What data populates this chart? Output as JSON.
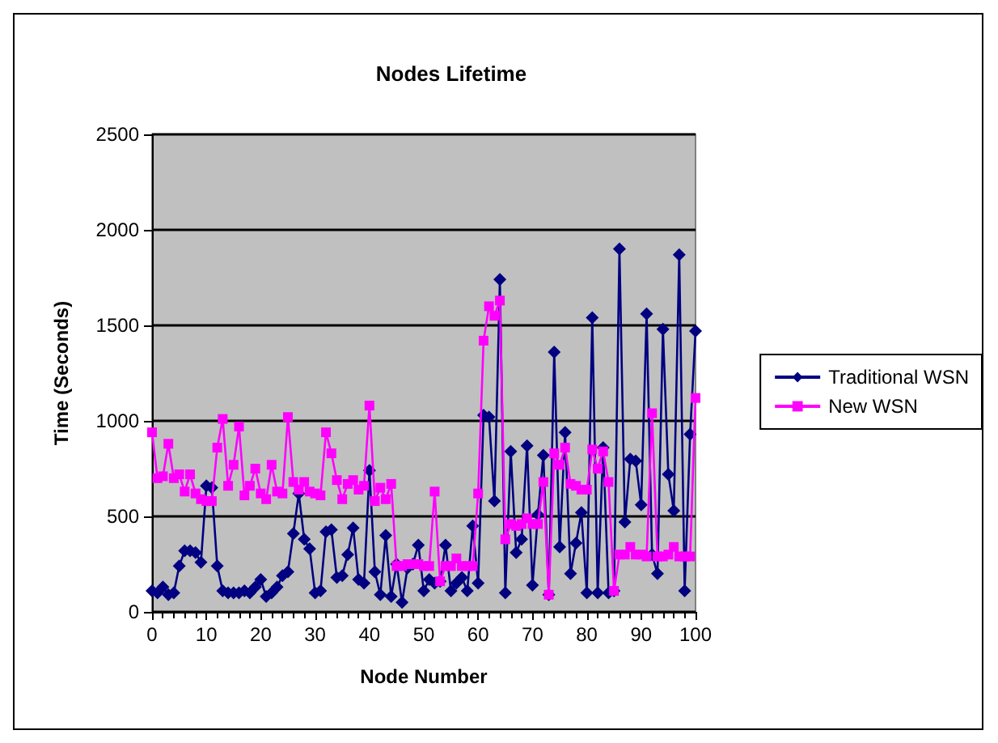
{
  "chart_data": {
    "type": "line",
    "title": "Nodes Lifetime",
    "xlabel": "Node Number",
    "ylabel": "Time (Seconds)",
    "x": [
      0,
      1,
      2,
      3,
      4,
      5,
      6,
      7,
      8,
      9,
      10,
      11,
      12,
      13,
      14,
      15,
      16,
      17,
      18,
      19,
      20,
      21,
      22,
      23,
      24,
      25,
      26,
      27,
      28,
      29,
      30,
      31,
      32,
      33,
      34,
      35,
      36,
      37,
      38,
      39,
      40,
      41,
      42,
      43,
      44,
      45,
      46,
      47,
      48,
      49,
      50,
      51,
      52,
      53,
      54,
      55,
      56,
      57,
      58,
      59,
      60,
      61,
      62,
      63,
      64,
      65,
      66,
      67,
      68,
      69,
      70,
      71,
      72,
      73,
      74,
      75,
      76,
      77,
      78,
      79,
      80,
      81,
      82,
      83,
      84,
      85,
      86,
      87,
      88,
      89,
      90,
      91,
      92,
      93,
      94,
      95,
      96,
      97,
      98,
      99,
      100
    ],
    "series": [
      {
        "name": "Traditional WSN",
        "color": "#000080",
        "marker": "diamond",
        "values": [
          110,
          100,
          130,
          90,
          100,
          240,
          320,
          320,
          310,
          260,
          660,
          650,
          240,
          110,
          100,
          100,
          100,
          110,
          100,
          130,
          170,
          80,
          100,
          130,
          190,
          210,
          410,
          620,
          380,
          330,
          100,
          110,
          420,
          430,
          180,
          190,
          300,
          440,
          170,
          150,
          740,
          210,
          90,
          400,
          80,
          250,
          50,
          230,
          250,
          350,
          110,
          170,
          150,
          160,
          350,
          110,
          150,
          180,
          110,
          450,
          150,
          1030,
          1020,
          580,
          1740,
          100,
          840,
          310,
          380,
          870,
          140,
          510,
          820,
          90,
          1360,
          340,
          940,
          200,
          360,
          520,
          100,
          1540,
          100,
          860,
          100,
          110,
          1900,
          470,
          800,
          790,
          560,
          1560,
          300,
          200,
          1480,
          720,
          530,
          1870,
          110,
          930,
          1470
        ]
      },
      {
        "name": "New WSN",
        "color": "#ff00ff",
        "marker": "square",
        "values": [
          940,
          700,
          710,
          880,
          700,
          720,
          630,
          720,
          620,
          590,
          580,
          580,
          860,
          1010,
          660,
          770,
          970,
          610,
          660,
          750,
          620,
          590,
          770,
          630,
          620,
          1020,
          680,
          640,
          680,
          630,
          620,
          610,
          940,
          830,
          690,
          590,
          670,
          690,
          640,
          660,
          1080,
          580,
          650,
          590,
          670,
          240,
          240,
          250,
          250,
          250,
          240,
          240,
          630,
          160,
          240,
          240,
          280,
          240,
          240,
          240,
          620,
          1420,
          1600,
          1550,
          1630,
          380,
          460,
          450,
          460,
          490,
          460,
          460,
          680,
          90,
          830,
          770,
          860,
          670,
          660,
          640,
          640,
          850,
          750,
          840,
          680,
          110,
          300,
          300,
          340,
          300,
          300,
          290,
          1040,
          290,
          290,
          300,
          340,
          290,
          290,
          290,
          1120
        ]
      }
    ],
    "xlim": [
      0,
      100
    ],
    "xticks": [
      0,
      10,
      20,
      30,
      40,
      50,
      60,
      70,
      80,
      90,
      100
    ],
    "ylim": [
      0,
      2500
    ],
    "yticks": [
      0,
      500,
      1000,
      1500,
      2000,
      2500
    ],
    "grid": "y",
    "legend": "right"
  }
}
